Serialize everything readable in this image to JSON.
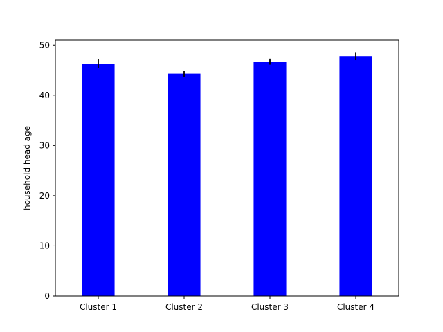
{
  "chart_data": {
    "type": "bar",
    "categories": [
      "Cluster 1",
      "Cluster 2",
      "Cluster 3",
      "Cluster 4"
    ],
    "values": [
      46.3,
      44.3,
      46.7,
      47.8
    ],
    "errors": [
      0.9,
      0.6,
      0.6,
      0.8
    ],
    "xlabel": "",
    "ylabel": "household head age",
    "ylim": [
      0,
      51
    ],
    "yticks": [
      0,
      10,
      20,
      30,
      40,
      50
    ],
    "bar_color": "#0000ff",
    "error_color": "#000000",
    "grid": false
  }
}
